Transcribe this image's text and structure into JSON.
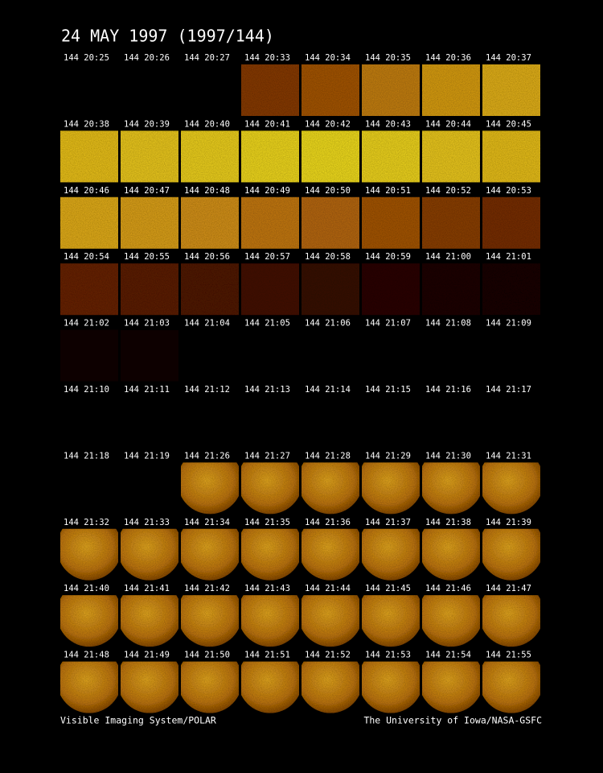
{
  "header": {
    "title": "24 MAY 1997  (1997/144)"
  },
  "frames": {
    "rows": [
      [
        "144 20:25",
        "144 20:26",
        "144 20:27",
        "144 20:33",
        "144 20:34",
        "144 20:35",
        "144 20:36",
        "144 20:37"
      ],
      [
        "144 20:38",
        "144 20:39",
        "144 20:40",
        "144 20:41",
        "144 20:42",
        "144 20:43",
        "144 20:44",
        "144 20:45"
      ],
      [
        "144 20:46",
        "144 20:47",
        "144 20:48",
        "144 20:49",
        "144 20:50",
        "144 20:51",
        "144 20:52",
        "144 20:53"
      ],
      [
        "144 20:54",
        "144 20:55",
        "144 20:56",
        "144 20:57",
        "144 20:58",
        "144 20:59",
        "144 21:00",
        "144 21:01"
      ],
      [
        "144 21:02",
        "144 21:03",
        "144 21:04",
        "144 21:05",
        "144 21:06",
        "144 21:07",
        "144 21:08",
        "144 21:09"
      ],
      [
        "144 21:10",
        "144 21:11",
        "144 21:12",
        "144 21:13",
        "144 21:14",
        "144 21:15",
        "144 21:16",
        "144 21:17"
      ],
      [
        "144 21:18",
        "144 21:19",
        "144 21:26",
        "144 21:27",
        "144 21:28",
        "144 21:29",
        "144 21:30",
        "144 21:31"
      ],
      [
        "144 21:32",
        "144 21:33",
        "144 21:34",
        "144 21:35",
        "144 21:36",
        "144 21:37",
        "144 21:38",
        "144 21:39"
      ],
      [
        "144 21:40",
        "144 21:41",
        "144 21:42",
        "144 21:43",
        "144 21:44",
        "144 21:45",
        "144 21:46",
        "144 21:47"
      ],
      [
        "144 21:48",
        "144 21:49",
        "144 21:50",
        "144 21:51",
        "144 21:52",
        "144 21:53",
        "144 21:54",
        "144 21:55"
      ]
    ]
  },
  "footer": {
    "left": "Visible Imaging System/POLAR",
    "right": "The University of Iowa/NASA-GSFC"
  }
}
